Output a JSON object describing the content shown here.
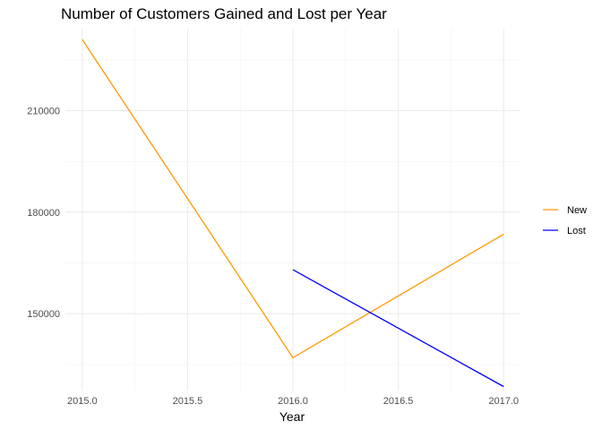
{
  "chart_data": {
    "type": "line",
    "title": "Number of Customers Gained and Lost per Year",
    "xlabel": "Year",
    "ylabel": "",
    "xlim": [
      2014.92,
      2017.08
    ],
    "ylim": [
      127300,
      234200
    ],
    "x_ticks": [
      "2015.0",
      "2015.5",
      "2016.0",
      "2016.5",
      "2017.0"
    ],
    "y_ticks": [
      "150000",
      "180000",
      "210000"
    ],
    "grid": true,
    "legend_position": "right",
    "series": [
      {
        "name": "New",
        "color": "#FF9900",
        "x": [
          2015.0,
          2016.0,
          2017.0
        ],
        "y": [
          231000,
          137000,
          173500
        ]
      },
      {
        "name": "Lost",
        "color": "#0000FF",
        "x": [
          2016.0,
          2017.0
        ],
        "y": [
          163000,
          128500
        ]
      }
    ]
  }
}
